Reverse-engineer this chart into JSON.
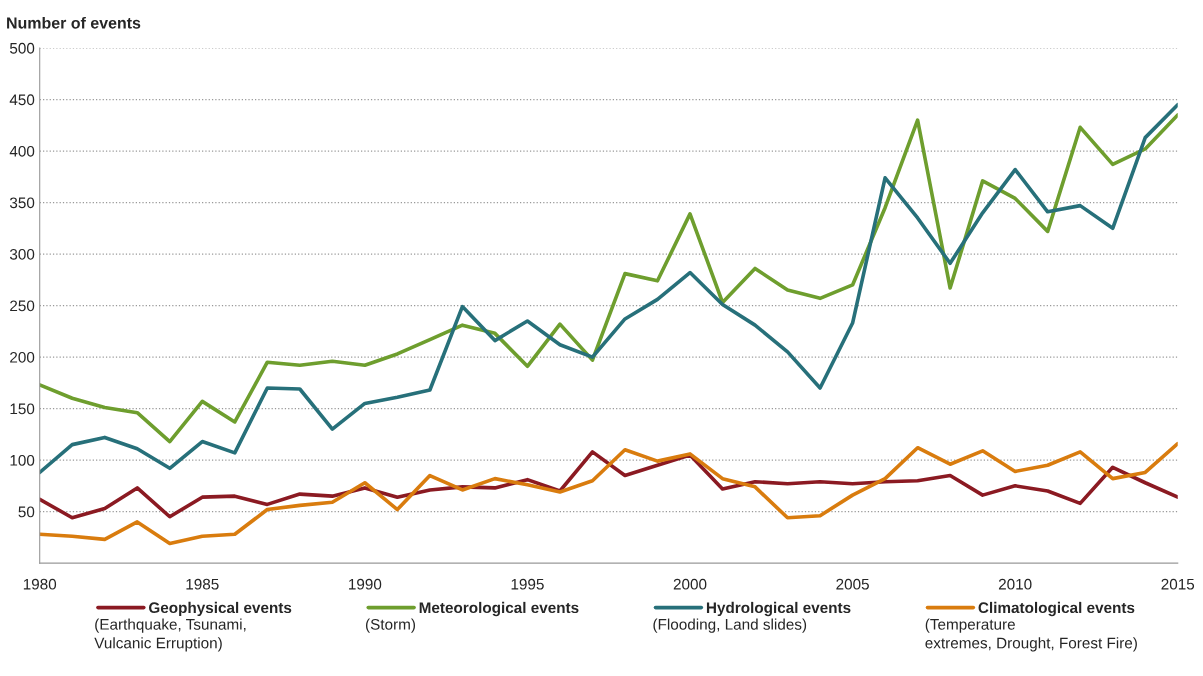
{
  "chart_data": {
    "type": "line",
    "ylabel": "Number of events",
    "x": [
      1980,
      1981,
      1982,
      1983,
      1984,
      1985,
      1986,
      1987,
      1988,
      1989,
      1990,
      1991,
      1992,
      1993,
      1994,
      1995,
      1996,
      1997,
      1998,
      1999,
      2000,
      2001,
      2002,
      2003,
      2004,
      2005,
      2006,
      2007,
      2008,
      2009,
      2010,
      2011,
      2012,
      2013,
      2014,
      2015
    ],
    "series": [
      {
        "name": "Geophysical events",
        "color": "#8b1a22",
        "values": [
          62,
          44,
          53,
          73,
          45,
          64,
          65,
          57,
          67,
          65,
          73,
          64,
          71,
          74,
          73,
          81,
          70,
          108,
          85,
          95,
          105,
          72,
          79,
          77,
          79,
          77,
          79,
          80,
          85,
          66,
          75,
          70,
          58,
          93,
          78,
          64
        ]
      },
      {
        "name": "Meteorological events",
        "color": "#6e9e2e",
        "values": [
          173,
          160,
          151,
          146,
          118,
          157,
          137,
          195,
          192,
          196,
          192,
          203,
          217,
          231,
          223,
          191,
          232,
          197,
          281,
          274,
          339,
          253,
          286,
          265,
          257,
          270,
          345,
          430,
          267,
          371,
          354,
          322,
          423,
          387,
          402,
          435
        ]
      },
      {
        "name": "Hydrological events",
        "color": "#27707a",
        "values": [
          88,
          115,
          122,
          111,
          92,
          118,
          107,
          170,
          169,
          130,
          155,
          161,
          168,
          249,
          216,
          235,
          212,
          200,
          237,
          256,
          282,
          251,
          231,
          205,
          170,
          233,
          374,
          335,
          291,
          340,
          382,
          341,
          347,
          325,
          413,
          445
        ]
      },
      {
        "name": "Climatological events",
        "color": "#d97c0e",
        "values": [
          28,
          26,
          23,
          40,
          19,
          26,
          28,
          52,
          56,
          59,
          78,
          52,
          85,
          71,
          82,
          76,
          69,
          80,
          110,
          99,
          106,
          82,
          74,
          44,
          46,
          66,
          82,
          112,
          96,
          109,
          89,
          95,
          108,
          82,
          88,
          116
        ]
      }
    ],
    "annotations": [
      "(Earthquake, Tsunami,\nVulcanic Erruption)",
      "(Storm)",
      "(Flooding, Land slides)",
      "(Temperature\nextremes, Drought, Forest Fire)"
    ],
    "xlim": [
      1980,
      2015
    ],
    "xticks": [
      1980,
      1985,
      1990,
      1995,
      2000,
      2005,
      2010,
      2015
    ],
    "ylim": [
      0,
      500
    ],
    "yticks": [
      50,
      100,
      150,
      200,
      250,
      300,
      350,
      400,
      450,
      500
    ],
    "grid": "y",
    "legend": "bottom",
    "marker": "none",
    "line_style": "solid"
  }
}
